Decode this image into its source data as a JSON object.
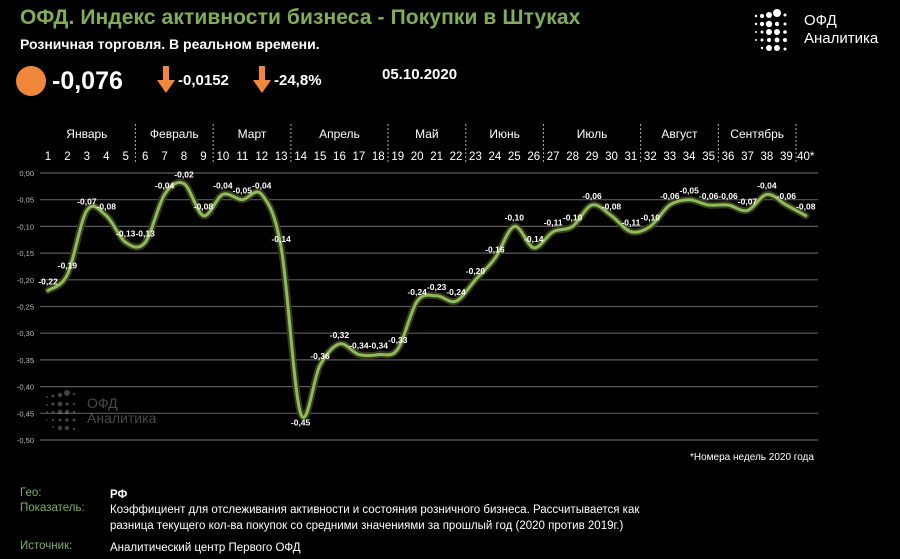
{
  "header": {
    "title": "ОФД. Индекс активности бизнеса - Покупки в Штуках",
    "subtitle": "Розничная торговля. В реальном времени."
  },
  "kpis": {
    "index_value": "-0,076",
    "change_abs": "-0,0152",
    "change_pct": "-24,8%",
    "date": "05.10.2020",
    "indicator_color": "#f0873a"
  },
  "logo": {
    "line1": "ОФД",
    "line2": "Аналитика"
  },
  "watermark": {
    "line1": "ОФД",
    "line2": "Аналитика"
  },
  "footnote": "*Номера недель 2020 года",
  "info": {
    "geo_label": "Гео:",
    "geo_value": "РФ",
    "indicator_label": "Показатель:",
    "indicator_value": "Коэффициент для отслеживания активности и состояния розничного бизнеса. Рассчитывается как разница текущего кол-ва покупок со средними значениями за прошлый год (2020 против 2019г.)",
    "source_label": "Источник:",
    "source_value": "Аналитический центр  Первого ОФД"
  },
  "chart_data": {
    "type": "line",
    "title": "ОФД. Индекс активности бизнеса - Покупки в Штуках",
    "xlabel": "Номера недель 2020 года",
    "ylabel": "",
    "ylim": [
      -0.5,
      0.0
    ],
    "yticks": [
      "0,00",
      "-0,05",
      "-0,10",
      "-0,15",
      "-0,20",
      "-0,25",
      "-0,30",
      "-0,35",
      "-0,40",
      "-0,45",
      "-0,50"
    ],
    "grid": true,
    "line_color": "#8bbd5c",
    "months": [
      {
        "name": "Январь",
        "from": 1,
        "to": 5
      },
      {
        "name": "Февраль",
        "from": 6,
        "to": 9
      },
      {
        "name": "Март",
        "from": 10,
        "to": 13
      },
      {
        "name": "Апрель",
        "from": 14,
        "to": 18
      },
      {
        "name": "Май",
        "from": 19,
        "to": 22
      },
      {
        "name": "Июнь",
        "from": 23,
        "to": 26
      },
      {
        "name": "Июль",
        "from": 27,
        "to": 31
      },
      {
        "name": "Август",
        "from": 32,
        "to": 35
      },
      {
        "name": "Сентябрь",
        "from": 36,
        "to": 39
      }
    ],
    "x": [
      1,
      2,
      3,
      4,
      5,
      6,
      7,
      8,
      9,
      10,
      11,
      12,
      13,
      14,
      15,
      16,
      17,
      18,
      19,
      20,
      21,
      22,
      23,
      24,
      25,
      26,
      27,
      28,
      29,
      30,
      31,
      32,
      33,
      34,
      35,
      36,
      37,
      38,
      39,
      40
    ],
    "x_labels": [
      "1",
      "2",
      "3",
      "4",
      "5",
      "6",
      "7",
      "8",
      "9",
      "10",
      "11",
      "12",
      "13",
      "14",
      "15",
      "16",
      "17",
      "18",
      "19",
      "20",
      "21",
      "22",
      "23",
      "24",
      "25",
      "26",
      "27",
      "28",
      "29",
      "30",
      "31",
      "32",
      "33",
      "34",
      "35",
      "36",
      "37",
      "38",
      "39",
      "40*"
    ],
    "values": [
      -0.22,
      -0.19,
      -0.07,
      -0.08,
      -0.13,
      -0.13,
      -0.04,
      -0.02,
      -0.08,
      -0.04,
      -0.05,
      -0.04,
      -0.14,
      -0.45,
      -0.36,
      -0.32,
      -0.34,
      -0.34,
      -0.33,
      -0.24,
      -0.23,
      -0.24,
      -0.2,
      -0.16,
      -0.1,
      -0.14,
      -0.11,
      -0.1,
      -0.06,
      -0.08,
      -0.11,
      -0.1,
      -0.06,
      -0.05,
      -0.06,
      -0.06,
      -0.07,
      -0.04,
      -0.06,
      -0.08
    ],
    "labels": [
      "-0,22",
      "-0,19",
      "-0,07",
      "-0,08",
      "-0,13",
      "-0,13",
      "-0,04",
      "-0,02",
      "-0,08",
      "-0,04",
      "-0,05",
      "-0,04",
      "-0,14",
      "-0,45",
      "-0,36",
      "-0,32",
      "-0,34",
      "-0,34",
      "-0,33",
      "-0,24",
      "-0,23",
      "-0,24",
      "-0,20",
      "-0,16",
      "-0,10",
      "-0,14",
      "-0,11",
      "-0,10",
      "-0,06",
      "-0,08",
      "-0,11",
      "-0,10",
      "-0,06",
      "-0,05",
      "-0,06",
      "-0,06",
      "-0,07",
      "-0,04",
      "-0,06",
      "-0,08"
    ]
  }
}
